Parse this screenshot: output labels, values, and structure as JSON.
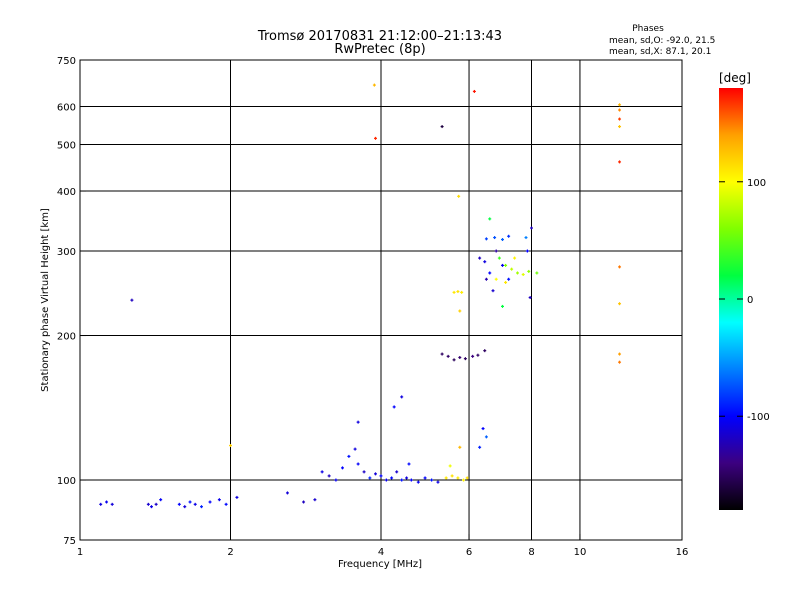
{
  "chart_data": {
    "type": "scatter",
    "title": "Tromsø 20170831 21:12:00–21:13:43",
    "subtitle": "RwPretec (8p)",
    "xlabel": "Frequency [MHz]",
    "ylabel": "Stationary phase Virtual Height [km]",
    "xscale": "log",
    "yscale": "log",
    "xlim": [
      1,
      16
    ],
    "ylim": [
      75,
      750
    ],
    "xticks": [
      1,
      2,
      4,
      6,
      8,
      10,
      16
    ],
    "yticks": [
      75,
      100,
      200,
      300,
      400,
      500,
      600,
      750
    ],
    "x_gridlines": [
      2,
      4,
      6,
      8,
      10
    ],
    "y_gridlines": [
      100,
      200,
      300,
      400,
      500,
      600
    ],
    "grid": true,
    "stats": {
      "title": "Phases",
      "line_o": "mean, sd,O: -92.0, 21.5",
      "line_x": "mean, sd,X:  87.1, 20.1"
    },
    "colorbar": {
      "label": "[deg]",
      "range": [
        -180,
        180
      ],
      "ticks": [
        100,
        0,
        -100
      ],
      "colormap": [
        "#000000",
        "#3c0080",
        "#0000ff",
        "#0080ff",
        "#00ffff",
        "#00ff40",
        "#80ff00",
        "#ffff00",
        "#ffa000",
        "#ff0000"
      ]
    },
    "points": [
      {
        "x": 1.1,
        "y": 89,
        "phase": -110
      },
      {
        "x": 1.13,
        "y": 90,
        "phase": -105
      },
      {
        "x": 1.16,
        "y": 89,
        "phase": -112
      },
      {
        "x": 1.27,
        "y": 237,
        "phase": -120
      },
      {
        "x": 1.37,
        "y": 89,
        "phase": -115
      },
      {
        "x": 1.39,
        "y": 88,
        "phase": -108
      },
      {
        "x": 1.42,
        "y": 89,
        "phase": -118
      },
      {
        "x": 1.45,
        "y": 91,
        "phase": -102
      },
      {
        "x": 1.58,
        "y": 89,
        "phase": -100
      },
      {
        "x": 1.62,
        "y": 88,
        "phase": -112
      },
      {
        "x": 1.66,
        "y": 90,
        "phase": -95
      },
      {
        "x": 1.7,
        "y": 89,
        "phase": -108
      },
      {
        "x": 1.75,
        "y": 88,
        "phase": -90
      },
      {
        "x": 1.82,
        "y": 90,
        "phase": -100
      },
      {
        "x": 1.9,
        "y": 91,
        "phase": -106
      },
      {
        "x": 1.96,
        "y": 89,
        "phase": -98
      },
      {
        "x": 2.06,
        "y": 92,
        "phase": -110
      },
      {
        "x": 2.0,
        "y": 118,
        "phase": 120
      },
      {
        "x": 2.6,
        "y": 94,
        "phase": -112
      },
      {
        "x": 2.8,
        "y": 90,
        "phase": -120
      },
      {
        "x": 2.95,
        "y": 91,
        "phase": -115
      },
      {
        "x": 3.05,
        "y": 104,
        "phase": -108
      },
      {
        "x": 3.15,
        "y": 102,
        "phase": -120
      },
      {
        "x": 3.25,
        "y": 100,
        "phase": -105
      },
      {
        "x": 3.35,
        "y": 106,
        "phase": -100
      },
      {
        "x": 3.45,
        "y": 112,
        "phase": -95
      },
      {
        "x": 3.55,
        "y": 116,
        "phase": -110
      },
      {
        "x": 3.6,
        "y": 108,
        "phase": -102
      },
      {
        "x": 3.7,
        "y": 104,
        "phase": -118
      },
      {
        "x": 3.8,
        "y": 101,
        "phase": -90
      },
      {
        "x": 3.9,
        "y": 103,
        "phase": -112
      },
      {
        "x": 4.0,
        "y": 102,
        "phase": -100
      },
      {
        "x": 4.1,
        "y": 100,
        "phase": -106
      },
      {
        "x": 4.2,
        "y": 101,
        "phase": -98
      },
      {
        "x": 4.3,
        "y": 104,
        "phase": -115
      },
      {
        "x": 4.4,
        "y": 100,
        "phase": -95
      },
      {
        "x": 4.5,
        "y": 101,
        "phase": -110
      },
      {
        "x": 4.6,
        "y": 100,
        "phase": -102
      },
      {
        "x": 4.75,
        "y": 99,
        "phase": -104
      },
      {
        "x": 4.9,
        "y": 101,
        "phase": -100
      },
      {
        "x": 5.05,
        "y": 100,
        "phase": -95
      },
      {
        "x": 5.2,
        "y": 99,
        "phase": -108
      },
      {
        "x": 3.6,
        "y": 132,
        "phase": -110
      },
      {
        "x": 4.25,
        "y": 142,
        "phase": -100
      },
      {
        "x": 4.55,
        "y": 108,
        "phase": -98
      },
      {
        "x": 4.4,
        "y": 149,
        "phase": -110
      },
      {
        "x": 5.4,
        "y": 101,
        "phase": 110
      },
      {
        "x": 5.55,
        "y": 102,
        "phase": 112
      },
      {
        "x": 5.7,
        "y": 101,
        "phase": 108
      },
      {
        "x": 5.85,
        "y": 100,
        "phase": 105
      },
      {
        "x": 5.95,
        "y": 101,
        "phase": 115
      },
      {
        "x": 5.5,
        "y": 107,
        "phase": 95
      },
      {
        "x": 5.75,
        "y": 117,
        "phase": 130
      },
      {
        "x": 6.3,
        "y": 117,
        "phase": -90
      },
      {
        "x": 6.5,
        "y": 123,
        "phase": -70
      },
      {
        "x": 6.4,
        "y": 128,
        "phase": -100
      },
      {
        "x": 5.3,
        "y": 183,
        "phase": -150
      },
      {
        "x": 5.45,
        "y": 181,
        "phase": -148
      },
      {
        "x": 5.6,
        "y": 178,
        "phase": -152
      },
      {
        "x": 5.75,
        "y": 180,
        "phase": -145
      },
      {
        "x": 5.9,
        "y": 179,
        "phase": -150
      },
      {
        "x": 6.1,
        "y": 181,
        "phase": -140
      },
      {
        "x": 6.25,
        "y": 182,
        "phase": -148
      },
      {
        "x": 6.45,
        "y": 186,
        "phase": -150
      },
      {
        "x": 5.6,
        "y": 246,
        "phase": 110
      },
      {
        "x": 5.7,
        "y": 247,
        "phase": 112
      },
      {
        "x": 5.8,
        "y": 246,
        "phase": 108
      },
      {
        "x": 5.75,
        "y": 225,
        "phase": 120
      },
      {
        "x": 5.72,
        "y": 390,
        "phase": 115
      },
      {
        "x": 6.3,
        "y": 290,
        "phase": -120
      },
      {
        "x": 6.45,
        "y": 285,
        "phase": -110
      },
      {
        "x": 6.6,
        "y": 270,
        "phase": -100
      },
      {
        "x": 6.8,
        "y": 300,
        "phase": -130
      },
      {
        "x": 7.0,
        "y": 280,
        "phase": -105
      },
      {
        "x": 7.2,
        "y": 262,
        "phase": -95
      },
      {
        "x": 6.5,
        "y": 262,
        "phase": -125
      },
      {
        "x": 6.7,
        "y": 248,
        "phase": -115
      },
      {
        "x": 6.5,
        "y": 318,
        "phase": -80
      },
      {
        "x": 6.75,
        "y": 320,
        "phase": -75
      },
      {
        "x": 7.0,
        "y": 317,
        "phase": -70
      },
      {
        "x": 7.2,
        "y": 322,
        "phase": -85
      },
      {
        "x": 6.6,
        "y": 350,
        "phase": 20
      },
      {
        "x": 6.9,
        "y": 290,
        "phase": 40
      },
      {
        "x": 7.1,
        "y": 280,
        "phase": 60
      },
      {
        "x": 7.3,
        "y": 275,
        "phase": 80
      },
      {
        "x": 7.5,
        "y": 270,
        "phase": 70
      },
      {
        "x": 7.7,
        "y": 268,
        "phase": 90
      },
      {
        "x": 7.9,
        "y": 272,
        "phase": 65
      },
      {
        "x": 8.2,
        "y": 270,
        "phase": 55
      },
      {
        "x": 6.8,
        "y": 262,
        "phase": 100
      },
      {
        "x": 7.1,
        "y": 258,
        "phase": 110
      },
      {
        "x": 7.4,
        "y": 290,
        "phase": 105
      },
      {
        "x": 7.85,
        "y": 300,
        "phase": -100
      },
      {
        "x": 8.0,
        "y": 335,
        "phase": -120
      },
      {
        "x": 7.8,
        "y": 320,
        "phase": -60
      },
      {
        "x": 7.95,
        "y": 240,
        "phase": -120
      },
      {
        "x": 7.0,
        "y": 230,
        "phase": 20
      },
      {
        "x": 6.15,
        "y": 645,
        "phase": 175
      },
      {
        "x": 5.3,
        "y": 545,
        "phase": -160
      },
      {
        "x": 3.9,
        "y": 515,
        "phase": 170
      },
      {
        "x": 3.88,
        "y": 665,
        "phase": 130
      },
      {
        "x": 12.0,
        "y": 605,
        "phase": 130
      },
      {
        "x": 12.0,
        "y": 590,
        "phase": 145
      },
      {
        "x": 12.0,
        "y": 565,
        "phase": 165
      },
      {
        "x": 12.0,
        "y": 545,
        "phase": 125
      },
      {
        "x": 12.0,
        "y": 460,
        "phase": 170
      },
      {
        "x": 12.0,
        "y": 278,
        "phase": 150
      },
      {
        "x": 12.0,
        "y": 233,
        "phase": 125
      },
      {
        "x": 12.0,
        "y": 183,
        "phase": 140
      },
      {
        "x": 12.0,
        "y": 176,
        "phase": 150
      }
    ]
  }
}
